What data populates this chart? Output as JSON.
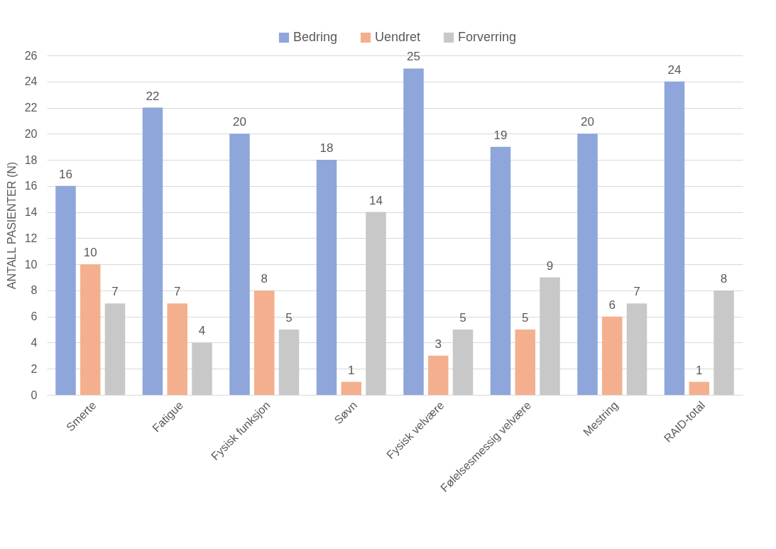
{
  "chart_data": {
    "type": "bar",
    "ylabel": "ANTALL PASIENTER (N)",
    "categories": [
      "Smerte",
      "Fatigue",
      "Fysisk funksjon",
      "Søvn",
      "Fysisk velvære",
      "Følelsesmessig velvære",
      "Mestring",
      "RAID-total"
    ],
    "series": [
      {
        "name": "Bedring",
        "color": "#8ea6da",
        "values": [
          16,
          22,
          20,
          18,
          25,
          19,
          20,
          24
        ]
      },
      {
        "name": "Uendret",
        "color": "#f4b08e",
        "values": [
          10,
          7,
          8,
          1,
          3,
          5,
          6,
          1
        ]
      },
      {
        "name": "Forverring",
        "color": "#c8c8c8",
        "values": [
          7,
          4,
          5,
          14,
          5,
          9,
          7,
          8
        ]
      }
    ],
    "ylim": [
      0,
      26
    ],
    "yticks": [
      0,
      2,
      4,
      6,
      8,
      10,
      12,
      14,
      16,
      18,
      20,
      22,
      24,
      26
    ],
    "grid": "y",
    "legend": "top",
    "data_labels": true
  }
}
